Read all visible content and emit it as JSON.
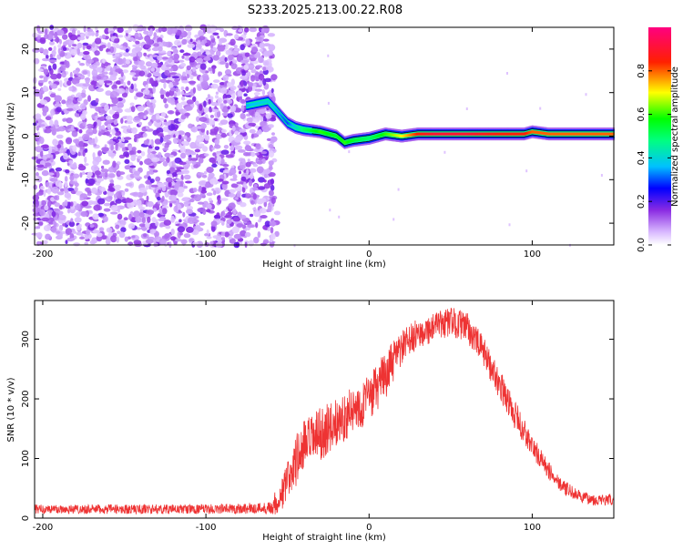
{
  "title": "S233.2025.213.00.22.R08",
  "chart_data": [
    {
      "type": "heatmap",
      "title": "S233.2025.213.00.22.R08",
      "xlabel": "Height of straight line (km)",
      "ylabel": "Frequency (Hz)",
      "xlim": [
        -205,
        150
      ],
      "ylim": [
        -25,
        25
      ],
      "x_ticks": [
        -200,
        -100,
        0,
        100
      ],
      "y_ticks": [
        -20,
        -10,
        0,
        10,
        20
      ],
      "x_tick_labels": [
        "-200",
        "-100",
        "0",
        "100"
      ],
      "y_tick_labels": [
        "-20",
        "-10",
        "0",
        "10",
        "20"
      ],
      "colorbar": {
        "label": "Normalized spectral amplitude",
        "range": [
          0,
          1
        ],
        "ticks": [
          0.0,
          0.2,
          0.4,
          0.6,
          0.8
        ],
        "tick_labels": [
          "0.0",
          "0.2",
          "0.4",
          "0.6",
          "0.8"
        ]
      },
      "noise_region": {
        "x_range": [
          -205,
          -58
        ],
        "level": 0.15
      },
      "ridge": {
        "x": [
          -75,
          -62,
          -57,
          -50,
          -45,
          -40,
          -30,
          -20,
          -15,
          -10,
          0,
          10,
          20,
          30,
          40,
          60,
          80,
          90,
          95,
          100,
          110,
          130,
          150
        ],
        "frequency": [
          7,
          8,
          6,
          3,
          2,
          1.5,
          1,
          0,
          -1.5,
          -1,
          -0.5,
          0.5,
          0,
          0.5,
          0.5,
          0.5,
          0.5,
          0.5,
          0.5,
          1,
          0.5,
          0.5,
          0.5
        ],
        "amplitude": [
          0.35,
          0.4,
          0.35,
          0.3,
          0.4,
          0.5,
          0.6,
          0.55,
          0.6,
          0.55,
          0.5,
          0.6,
          0.7,
          0.85,
          0.9,
          0.9,
          0.85,
          0.85,
          0.85,
          0.8,
          0.8,
          0.8,
          0.8
        ]
      }
    },
    {
      "type": "line",
      "xlabel": "Height of straight line (km)",
      "ylabel": "SNR (10 * v/v)",
      "xlim": [
        -205,
        150
      ],
      "ylim": [
        0,
        365
      ],
      "x_ticks": [
        -200,
        -100,
        0,
        100
      ],
      "y_ticks": [
        0,
        100,
        200,
        300
      ],
      "x_tick_labels": [
        "-200",
        "-100",
        "0",
        "100"
      ],
      "y_tick_labels": [
        "0",
        "100",
        "200",
        "300"
      ],
      "color": "#ee3333",
      "envelope": {
        "x": [
          -205,
          -100,
          -62,
          -55,
          -45,
          -40,
          -30,
          -20,
          -10,
          0,
          10,
          20,
          30,
          40,
          50,
          60,
          70,
          80,
          90,
          100,
          110,
          120,
          130,
          140,
          150
        ],
        "mean": [
          15,
          15,
          17,
          30,
          95,
          120,
          140,
          160,
          180,
          200,
          240,
          285,
          310,
          320,
          330,
          320,
          280,
          225,
          170,
          120,
          80,
          50,
          35,
          30,
          30
        ],
        "spread": [
          8,
          8,
          10,
          25,
          45,
          45,
          45,
          40,
          40,
          40,
          40,
          30,
          25,
          25,
          25,
          25,
          25,
          25,
          25,
          20,
          15,
          12,
          10,
          10,
          10
        ]
      }
    }
  ]
}
